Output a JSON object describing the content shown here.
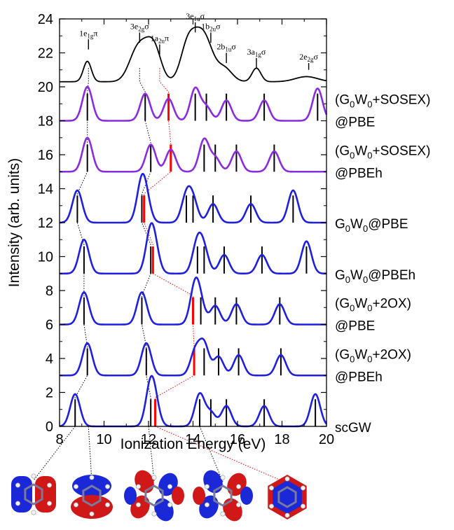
{
  "chart_data": {
    "type": "line",
    "xlabel": "Ionization Energy (eV)",
    "ylabel": "Intensity (arb. units)",
    "xlim": [
      8,
      20
    ],
    "ylim": [
      0,
      24
    ],
    "x_ticks": [
      "8",
      "10",
      "12",
      "14",
      "16",
      "18",
      "20"
    ],
    "y_ticks": [
      "0",
      "2",
      "4",
      "6",
      "8",
      "10",
      "12",
      "14",
      "16",
      "18",
      "20",
      "22",
      "24"
    ],
    "colors": {
      "experiment": "#000000",
      "sosex": "#8a2be2",
      "gw": "#1f1fe0",
      "stick": "#000000",
      "homo": "#ff0000",
      "connector": "#000000",
      "connector_homo": "#ff0000"
    },
    "experiment": {
      "baseline": 20.3,
      "peaks": [
        {
          "e": 9.25,
          "h": 1.2,
          "w": 0.18
        },
        {
          "e": 11.4,
          "h": 1.2,
          "w": 0.35
        },
        {
          "e": 11.9,
          "h": 1.7,
          "w": 0.4
        },
        {
          "e": 12.3,
          "h": 1.2,
          "w": 0.3
        },
        {
          "e": 13.7,
          "h": 1.2,
          "w": 0.3
        },
        {
          "e": 14.1,
          "h": 2.1,
          "w": 0.4
        },
        {
          "e": 14.6,
          "h": 1.7,
          "w": 0.35
        },
        {
          "e": 15.4,
          "h": 0.8,
          "w": 0.35
        },
        {
          "e": 16.85,
          "h": 0.8,
          "w": 0.2
        },
        {
          "e": 19.1,
          "h": 0.3,
          "w": 0.5
        }
      ],
      "labels": [
        {
          "main": "1e",
          "sub": "1g",
          "tail": "π",
          "e": 9.3,
          "y": 23.0,
          "tick_top": 22.8,
          "tick_bottom": 22.2
        },
        {
          "main": "3e",
          "sub": "2g",
          "tail": "σ",
          "e": 11.6,
          "y": 23.4,
          "tick_top": 23.2,
          "tick_bottom": 22.6
        },
        {
          "main": "1a",
          "sub": "2u",
          "tail": "π",
          "e": 12.5,
          "y": 22.7,
          "tick_top": 22.5,
          "tick_bottom": 21.9
        },
        {
          "main": "3e",
          "sub": "1u",
          "tail": "σ",
          "e": 14.1,
          "y": 24.0,
          "tick_top": 23.8,
          "tick_bottom": 23.2
        },
        {
          "main": "1b",
          "sub": "2u",
          "tail": "σ",
          "e": 14.8,
          "y": 23.4,
          "tick_top": 23.2,
          "tick_bottom": 22.6
        },
        {
          "main": "2b",
          "sub": "1u",
          "tail": "σ",
          "e": 15.5,
          "y": 22.2,
          "tick_top": 22.0,
          "tick_bottom": 21.4
        },
        {
          "main": "3a",
          "sub": "1g",
          "tail": "σ",
          "e": 16.85,
          "y": 21.9,
          "tick_top": 21.7,
          "tick_bottom": 21.1
        },
        {
          "main": "2e",
          "sub": "2g",
          "tail": "σ",
          "e": 19.2,
          "y": 21.6,
          "tick_top": 21.4,
          "tick_bottom": 21.0
        }
      ]
    },
    "series": [
      {
        "key": "sosex_pbe",
        "color": "sosex",
        "baseline": 18,
        "label": [
          "(G",
          "0",
          "W",
          "0",
          "+SOSEX)"
        ],
        "label2": "@PBE",
        "peaks": [
          {
            "e": 9.25,
            "h": 2.0
          },
          {
            "e": 11.85,
            "h": 1.6
          },
          {
            "e": 12.9,
            "h": 1.3
          },
          {
            "e": 14.1,
            "h": 1.9
          },
          {
            "e": 14.6,
            "h": 0.8
          },
          {
            "e": 15.5,
            "h": 1.2
          },
          {
            "e": 17.2,
            "h": 1.2
          },
          {
            "e": 19.6,
            "h": 1.9
          }
        ],
        "sticks": [
          9.25,
          11.85,
          14.1,
          14.6,
          15.5,
          17.2,
          19.6
        ],
        "homo": 12.9
      },
      {
        "key": "sosex_pbeh",
        "color": "sosex",
        "baseline": 15,
        "label": [
          "(G",
          "0",
          "W",
          "0",
          "+SOSEX)"
        ],
        "label2": "@PBEh",
        "peaks": [
          {
            "e": 9.25,
            "h": 2.0
          },
          {
            "e": 12.1,
            "h": 1.6
          },
          {
            "e": 13.0,
            "h": 1.3
          },
          {
            "e": 14.5,
            "h": 1.9
          },
          {
            "e": 15.0,
            "h": 0.8
          },
          {
            "e": 15.95,
            "h": 1.2
          },
          {
            "e": 17.65,
            "h": 1.2
          }
        ],
        "sticks": [
          9.25,
          12.1,
          14.5,
          15.0,
          15.95,
          17.65
        ],
        "homo": 13.0
      },
      {
        "key": "gw_pbe",
        "color": "gw",
        "baseline": 12,
        "label": [
          "G",
          "0",
          "W",
          "0",
          "@PBE"
        ],
        "label2": "",
        "peaks": [
          {
            "e": 8.8,
            "h": 1.9
          },
          {
            "e": 11.7,
            "h": 2.3
          },
          {
            "e": 11.9,
            "h": 0.8
          },
          {
            "e": 13.7,
            "h": 1.5
          },
          {
            "e": 14.0,
            "h": 1.2
          },
          {
            "e": 14.9,
            "h": 1.1
          },
          {
            "e": 16.6,
            "h": 1.1
          },
          {
            "e": 18.5,
            "h": 1.9
          }
        ],
        "sticks": [
          8.8,
          11.7,
          13.7,
          14.0,
          14.9,
          16.6,
          18.5
        ],
        "homo": 11.8
      },
      {
        "key": "gw_pbeh",
        "color": "gw",
        "baseline": 9,
        "label": [
          "G",
          "0",
          "W",
          "0",
          "@PBEh"
        ],
        "label2": "",
        "peaks": [
          {
            "e": 9.1,
            "h": 2.0
          },
          {
            "e": 12.1,
            "h": 2.4
          },
          {
            "e": 12.3,
            "h": 0.8
          },
          {
            "e": 14.2,
            "h": 1.8
          },
          {
            "e": 14.5,
            "h": 1.2
          },
          {
            "e": 15.4,
            "h": 1.1
          },
          {
            "e": 17.1,
            "h": 1.1
          },
          {
            "e": 19.1,
            "h": 1.9
          }
        ],
        "sticks": [
          9.1,
          12.1,
          14.2,
          14.5,
          15.4,
          17.1,
          19.1
        ],
        "homo": 12.2
      },
      {
        "key": "ox_pbe",
        "color": "gw",
        "baseline": 6,
        "label": [
          "(G",
          "0",
          "W",
          "0",
          "+2OX)"
        ],
        "label2": "@PBE",
        "peaks": [
          {
            "e": 9.1,
            "h": 1.9
          },
          {
            "e": 11.7,
            "h": 1.9
          },
          {
            "e": 14.1,
            "h": 2.3
          },
          {
            "e": 14.35,
            "h": 0.8
          },
          {
            "e": 15.0,
            "h": 1.1
          },
          {
            "e": 15.95,
            "h": 1.2
          },
          {
            "e": 17.9,
            "h": 1.2
          }
        ],
        "sticks": [
          9.1,
          11.7,
          14.35,
          15.0,
          15.95,
          17.9
        ],
        "homo": 14.0
      },
      {
        "key": "ox_pbeh",
        "color": "gw",
        "baseline": 3,
        "label": [
          "(G",
          "0",
          "W",
          "0",
          "+2OX)"
        ],
        "label2": "@PBEh",
        "peaks": [
          {
            "e": 9.25,
            "h": 1.9
          },
          {
            "e": 11.9,
            "h": 1.9
          },
          {
            "e": 14.1,
            "h": 1.4
          },
          {
            "e": 14.5,
            "h": 1.8
          },
          {
            "e": 15.15,
            "h": 1.1
          },
          {
            "e": 16.05,
            "h": 1.2
          },
          {
            "e": 17.95,
            "h": 1.2
          }
        ],
        "sticks": [
          9.25,
          11.9,
          14.5,
          15.15,
          16.05,
          17.95
        ],
        "homo": 14.05
      },
      {
        "key": "scgw",
        "color": "gw",
        "baseline": 0,
        "label": [
          "scGW"
        ],
        "label2": "",
        "peaks": [
          {
            "e": 8.7,
            "h": 1.9
          },
          {
            "e": 12.1,
            "h": 2.4
          },
          {
            "e": 12.3,
            "h": 0.8
          },
          {
            "e": 14.3,
            "h": 1.9
          },
          {
            "e": 14.8,
            "h": 0.8
          },
          {
            "e": 15.5,
            "h": 1.2
          },
          {
            "e": 17.2,
            "h": 1.2
          },
          {
            "e": 19.5,
            "h": 1.9
          }
        ],
        "sticks": [
          8.7,
          12.1,
          14.3,
          14.8,
          15.5,
          17.2,
          19.5
        ],
        "homo": 12.3
      }
    ],
    "connectors": [
      {
        "key": "c1",
        "color": "connector",
        "points": [
          9.3,
          9.25,
          9.25,
          8.8,
          9.1,
          9.1,
          9.25,
          8.7
        ]
      },
      {
        "key": "c2",
        "color": "connector",
        "points": [
          11.6,
          11.85,
          12.1,
          11.7,
          12.1,
          11.7,
          11.9,
          12.1
        ]
      },
      {
        "key": "c3",
        "color": "connector_homo",
        "points": [
          12.5,
          12.9,
          13.0,
          11.8,
          12.2,
          14.0,
          14.05,
          12.3
        ]
      }
    ],
    "orbitals": [
      {
        "name": "orbital-1e1g-pi",
        "anchor_e": 8.7,
        "kind": "pi-a"
      },
      {
        "name": "orbital-3e2g-sigma",
        "anchor_e": 9.3,
        "kind": "pi-b"
      },
      {
        "name": "orbital-1a2u-pi",
        "anchor_e": 12.0,
        "kind": "sigma-a"
      },
      {
        "name": "orbital-3e1u-sigma",
        "anchor_e": 14.3,
        "kind": "sigma-b"
      },
      {
        "name": "orbital-homo",
        "anchor_e": 12.3,
        "kind": "ring"
      }
    ]
  }
}
